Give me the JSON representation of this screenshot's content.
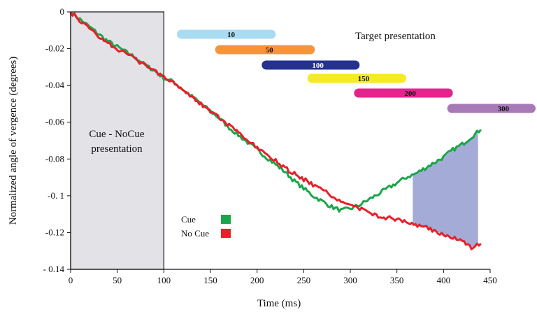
{
  "chart_data": {
    "type": "line",
    "title": "",
    "xlabel": "Time (ms)",
    "ylabel": "Normalized angle of vergence (degrees)",
    "xlim": [
      0,
      450
    ],
    "ylim": [
      -0.14,
      0
    ],
    "x_ticks": [
      0,
      50,
      100,
      150,
      200,
      250,
      300,
      350,
      400,
      450
    ],
    "y_ticks": [
      0,
      -0.02,
      -0.04,
      -0.06,
      -0.08,
      -0.1,
      -0.12,
      -0.14
    ],
    "x_tick_labels": [
      "0",
      "50",
      "100",
      "150",
      "200",
      "250",
      "300",
      "350",
      "400",
      "450"
    ],
    "y_tick_labels": [
      "0",
      "-0.02",
      "-0.04",
      "-0.06",
      "-0.08",
      "-0. 1",
      "-0.12",
      "- 0.14"
    ],
    "grid": false,
    "legend_position": "bottom-left",
    "series": [
      {
        "name": "Cue",
        "color": "#1aa64a",
        "x": [
          0,
          10,
          20,
          30,
          40,
          50,
          60,
          70,
          80,
          90,
          100,
          110,
          120,
          130,
          140,
          150,
          160,
          170,
          180,
          190,
          200,
          210,
          220,
          230,
          240,
          250,
          260,
          270,
          280,
          290,
          300,
          310,
          320,
          330,
          340,
          350,
          360,
          370,
          380,
          390,
          400,
          410,
          420,
          430,
          440
        ],
        "y": [
          0,
          -0.004,
          -0.008,
          -0.012,
          -0.016,
          -0.019,
          -0.022,
          -0.025,
          -0.029,
          -0.032,
          -0.036,
          -0.038,
          -0.042,
          -0.046,
          -0.05,
          -0.054,
          -0.058,
          -0.063,
          -0.067,
          -0.071,
          -0.075,
          -0.079,
          -0.083,
          -0.087,
          -0.092,
          -0.096,
          -0.1,
          -0.103,
          -0.106,
          -0.108,
          -0.107,
          -0.105,
          -0.102,
          -0.099,
          -0.096,
          -0.093,
          -0.09,
          -0.088,
          -0.085,
          -0.082,
          -0.079,
          -0.075,
          -0.072,
          -0.068,
          -0.064
        ]
      },
      {
        "name": "No Cue",
        "color": "#e8202a",
        "x": [
          0,
          10,
          20,
          30,
          40,
          50,
          60,
          70,
          80,
          90,
          100,
          110,
          120,
          130,
          140,
          150,
          160,
          170,
          180,
          190,
          200,
          210,
          220,
          230,
          240,
          250,
          260,
          270,
          280,
          290,
          300,
          310,
          320,
          330,
          340,
          350,
          360,
          370,
          380,
          390,
          400,
          410,
          420,
          430,
          440
        ],
        "y": [
          0,
          -0.005,
          -0.009,
          -0.013,
          -0.017,
          -0.02,
          -0.023,
          -0.026,
          -0.029,
          -0.032,
          -0.035,
          -0.038,
          -0.042,
          -0.046,
          -0.05,
          -0.054,
          -0.058,
          -0.062,
          -0.066,
          -0.07,
          -0.074,
          -0.078,
          -0.081,
          -0.085,
          -0.088,
          -0.091,
          -0.094,
          -0.097,
          -0.1,
          -0.103,
          -0.105,
          -0.107,
          -0.109,
          -0.111,
          -0.112,
          -0.113,
          -0.114,
          -0.116,
          -0.117,
          -0.119,
          -0.121,
          -0.123,
          -0.125,
          -0.128,
          -0.126
        ]
      }
    ],
    "shaded_region": {
      "x_start": 367,
      "x_end": 437,
      "color": "#a3abd6"
    },
    "cue_period": {
      "x_start": 0,
      "x_end": 100,
      "label_line1": "Cue - NoCue",
      "label_line2": "presentation",
      "color": "#e3e3e7"
    },
    "target_presentation": {
      "label": "Target presentation",
      "bars": [
        {
          "label": "10",
          "x_start": 114,
          "x_end": 220,
          "color": "#a8dcf2",
          "text_color": "#111111"
        },
        {
          "label": "50",
          "x_start": 155,
          "x_end": 262,
          "color": "#f4953d",
          "text_color": "#111111"
        },
        {
          "label": "100",
          "x_start": 205,
          "x_end": 310,
          "color": "#25318f",
          "text_color": "#ffffff"
        },
        {
          "label": "150",
          "x_start": 254,
          "x_end": 360,
          "color": "#f4ea26",
          "text_color": "#111111"
        },
        {
          "label": "200",
          "x_start": 304,
          "x_end": 410,
          "color": "#e5238c",
          "text_color": "#111111"
        },
        {
          "label": "300",
          "x_start": 404,
          "x_end": 510,
          "color": "#a77ab7",
          "text_color": "#111111"
        }
      ]
    },
    "legend": [
      {
        "label": "Cue",
        "color": "#1aa64a"
      },
      {
        "label": "No Cue",
        "color": "#e8202a"
      }
    ]
  }
}
